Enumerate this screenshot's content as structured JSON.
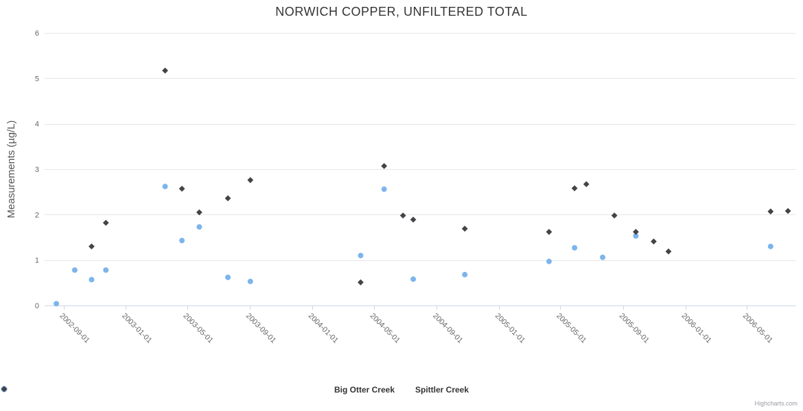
{
  "header": {
    "title": "NORWICH COPPER, UNFILTERED TOTAL"
  },
  "y_axis": {
    "title": "Measurements (µg/L)"
  },
  "legend": {
    "items": [
      {
        "label": "Big Otter Creek",
        "marker": "circle",
        "color": "#7cb5ec"
      },
      {
        "label": "Spittler Creek",
        "marker": "diamond",
        "color": "#434348"
      }
    ]
  },
  "credits": {
    "label": "Highcharts.com"
  },
  "colors": {
    "grid_line": "#e6e6e6",
    "axis_line": "#ccd6eb",
    "tick_label": "#666666",
    "series_big_otter": "#7cb5ec",
    "series_spittler": "#434348"
  },
  "chart_data": {
    "type": "scatter",
    "title": "NORWICH COPPER, UNFILTERED TOTAL",
    "xlabel": "",
    "ylabel": "Measurements (µg/L)",
    "ylim": [
      0,
      6
    ],
    "yticks": [
      0,
      1,
      2,
      3,
      4,
      5,
      6
    ],
    "x_range": [
      "2002-07-26",
      "2006-08-06"
    ],
    "xticks": [
      "2002-09-01",
      "2003-01-01",
      "2003-05-01",
      "2003-09-01",
      "2004-01-01",
      "2004-05-01",
      "2004-09-01",
      "2005-01-01",
      "2005-05-01",
      "2005-09-01",
      "2006-01-01",
      "2006-05-01"
    ],
    "grid": "horizontal-only",
    "legend_position": "bottom-center",
    "series": [
      {
        "name": "Big Otter Creek",
        "marker": "circle",
        "color": "#7cb5ec",
        "points": [
          [
            "2002-08-18",
            0.04
          ],
          [
            "2002-09-23",
            0.78
          ],
          [
            "2002-10-26",
            0.57
          ],
          [
            "2002-11-23",
            0.78
          ],
          [
            "2003-03-19",
            2.62
          ],
          [
            "2003-04-21",
            1.43
          ],
          [
            "2003-05-25",
            1.73
          ],
          [
            "2003-07-20",
            0.62
          ],
          [
            "2003-09-02",
            0.53
          ],
          [
            "2004-04-05",
            1.1
          ],
          [
            "2004-05-21",
            2.56
          ],
          [
            "2004-07-17",
            0.58
          ],
          [
            "2004-10-26",
            0.68
          ],
          [
            "2005-04-09",
            0.97
          ],
          [
            "2005-05-29",
            1.27
          ],
          [
            "2005-07-23",
            1.06
          ],
          [
            "2005-09-26",
            1.53
          ],
          [
            "2006-06-17",
            1.3
          ]
        ]
      },
      {
        "name": "Spittler Creek",
        "marker": "diamond",
        "color": "#434348",
        "points": [
          [
            "2002-10-26",
            1.3
          ],
          [
            "2002-11-23",
            1.82
          ],
          [
            "2003-03-19",
            5.17
          ],
          [
            "2003-04-21",
            2.57
          ],
          [
            "2003-05-25",
            2.05
          ],
          [
            "2003-07-20",
            2.36
          ],
          [
            "2003-09-02",
            2.76
          ],
          [
            "2004-04-05",
            0.51
          ],
          [
            "2004-05-21",
            3.07
          ],
          [
            "2004-06-27",
            1.98
          ],
          [
            "2004-07-17",
            1.89
          ],
          [
            "2004-10-26",
            1.69
          ],
          [
            "2005-04-09",
            1.62
          ],
          [
            "2005-05-29",
            2.58
          ],
          [
            "2005-06-21",
            2.67
          ],
          [
            "2005-08-15",
            1.98
          ],
          [
            "2005-09-26",
            1.62
          ],
          [
            "2005-10-31",
            1.41
          ],
          [
            "2005-11-29",
            1.19
          ],
          [
            "2006-06-17",
            2.07
          ],
          [
            "2006-07-21",
            2.08
          ]
        ]
      }
    ]
  }
}
